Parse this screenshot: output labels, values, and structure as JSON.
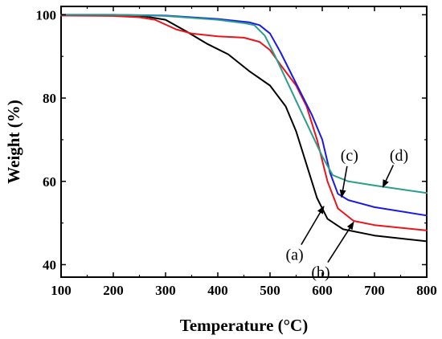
{
  "chart_data": {
    "type": "line",
    "title": "",
    "xlabel": "Temperature (°C)",
    "ylabel": "Weight (%)",
    "xlim": [
      100,
      800
    ],
    "ylim": [
      37,
      102
    ],
    "xticks": [
      100,
      200,
      300,
      400,
      500,
      600,
      700,
      800
    ],
    "yticks": [
      40,
      60,
      80,
      100
    ],
    "grid": false,
    "legend": "none",
    "series": [
      {
        "label": "(a)",
        "color": "#000000",
        "points": [
          [
            100,
            100
          ],
          [
            200,
            99.8
          ],
          [
            260,
            99.6
          ],
          [
            300,
            98.8
          ],
          [
            340,
            96
          ],
          [
            380,
            93
          ],
          [
            420,
            90.5
          ],
          [
            460,
            86.5
          ],
          [
            500,
            83
          ],
          [
            530,
            78
          ],
          [
            550,
            72
          ],
          [
            570,
            64
          ],
          [
            590,
            56
          ],
          [
            610,
            51
          ],
          [
            640,
            48.5
          ],
          [
            700,
            47
          ],
          [
            800,
            45.6
          ]
        ]
      },
      {
        "label": "(b)",
        "color": "#e8151b",
        "points": [
          [
            100,
            99.8
          ],
          [
            200,
            99.7
          ],
          [
            250,
            99.4
          ],
          [
            280,
            98.8
          ],
          [
            320,
            96.5
          ],
          [
            350,
            95.5
          ],
          [
            400,
            94.8
          ],
          [
            450,
            94.5
          ],
          [
            480,
            93.5
          ],
          [
            500,
            91.5
          ],
          [
            520,
            88
          ],
          [
            550,
            83
          ],
          [
            570,
            78
          ],
          [
            590,
            70
          ],
          [
            610,
            60
          ],
          [
            630,
            53.5
          ],
          [
            660,
            50.5
          ],
          [
            700,
            49.5
          ],
          [
            800,
            48.2
          ]
        ]
      },
      {
        "label": "(c)",
        "color": "#1a1ae8",
        "points": [
          [
            100,
            100
          ],
          [
            200,
            100
          ],
          [
            300,
            99.8
          ],
          [
            400,
            99
          ],
          [
            460,
            98.2
          ],
          [
            480,
            97.5
          ],
          [
            500,
            95.5
          ],
          [
            520,
            91
          ],
          [
            540,
            86
          ],
          [
            560,
            81
          ],
          [
            580,
            76
          ],
          [
            600,
            70
          ],
          [
            615,
            62
          ],
          [
            630,
            57
          ],
          [
            650,
            55.5
          ],
          [
            700,
            53.8
          ],
          [
            800,
            51.8
          ]
        ]
      },
      {
        "label": "(d)",
        "color": "#2a9d8f",
        "points": [
          [
            100,
            100
          ],
          [
            200,
            100
          ],
          [
            300,
            99.7
          ],
          [
            400,
            98.8
          ],
          [
            450,
            98
          ],
          [
            470,
            97.5
          ],
          [
            490,
            95
          ],
          [
            510,
            90
          ],
          [
            540,
            82
          ],
          [
            570,
            74
          ],
          [
            600,
            66
          ],
          [
            620,
            61.5
          ],
          [
            650,
            60
          ],
          [
            700,
            59
          ],
          [
            800,
            57.2
          ]
        ]
      }
    ],
    "annotations": [
      {
        "text": "(a)",
        "series": "(a)",
        "target": [
          603,
          54
        ],
        "label_at": [
          547,
          42.5
        ]
      },
      {
        "text": "(b)",
        "series": "(b)",
        "target": [
          660,
          50.2
        ],
        "label_at": [
          597,
          38.3
        ]
      },
      {
        "text": "(c)",
        "series": "(c)",
        "target": [
          637,
          56.2
        ],
        "label_at": [
          652,
          66.3
        ]
      },
      {
        "text": "(d)",
        "series": "(d)",
        "target": [
          716,
          58.6
        ],
        "label_at": [
          747,
          66.3
        ]
      }
    ]
  }
}
